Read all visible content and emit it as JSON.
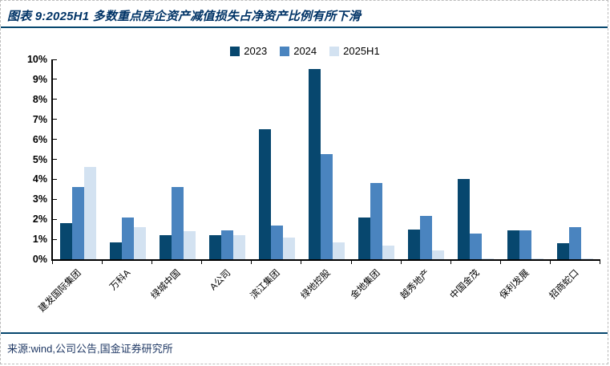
{
  "figure": {
    "title": "图表 9:2025H1 多数重点房企资产减值损失占净资产比例有所下滑",
    "source": "来源:wind,公司公告,国金证券研究所"
  },
  "colors": {
    "title_navy": "#003366",
    "divider_navy": "#07476E",
    "axis_black": "#000000",
    "source_navy": "#1f3864",
    "series_2023": "#07476E",
    "series_2024": "#4A84BF",
    "series_2025h1": "#D3E2F1"
  },
  "chart_data": {
    "type": "bar",
    "title": "",
    "xlabel": "",
    "ylabel": "",
    "categories": [
      "建发国际集团",
      "万科A",
      "绿城中国",
      "A公司",
      "滨江集团",
      "绿地控股",
      "金地集团",
      "越秀地产",
      "中国金茂",
      "保利发展",
      "招商蛇口"
    ],
    "series": [
      {
        "name": "2023",
        "color": "#07476E",
        "values": [
          1.8,
          0.85,
          1.2,
          1.2,
          6.5,
          9.5,
          2.1,
          1.5,
          4.0,
          1.45,
          0.8
        ]
      },
      {
        "name": "2024",
        "color": "#4A84BF",
        "values": [
          3.6,
          2.1,
          3.6,
          1.45,
          1.7,
          5.25,
          3.8,
          2.15,
          1.3,
          1.45,
          1.6
        ]
      },
      {
        "name": "2025H1",
        "color": "#D3E2F1",
        "values": [
          4.6,
          1.6,
          1.4,
          1.2,
          1.1,
          0.85,
          0.7,
          0.45,
          0.05,
          0.05,
          0.05
        ]
      }
    ],
    "ylim": [
      0,
      10
    ],
    "ytick_step": 1,
    "ytick_labels": [
      "0%",
      "1%",
      "2%",
      "3%",
      "4%",
      "5%",
      "6%",
      "7%",
      "8%",
      "9%",
      "10%"
    ],
    "ytick_format": "percent",
    "legend_position": "top-center",
    "grid": false
  }
}
